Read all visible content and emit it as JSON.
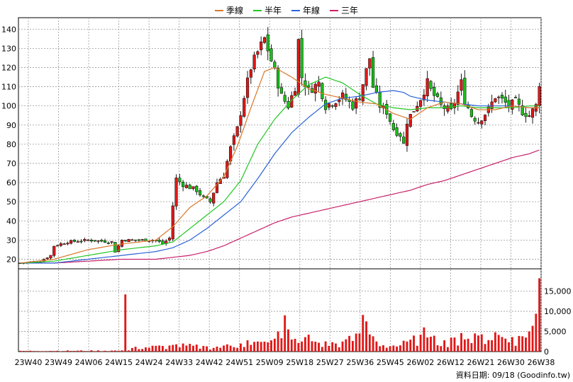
{
  "legend": [
    {
      "name": "季線",
      "color": "#d9772a"
    },
    {
      "name": "半年",
      "color": "#22c722"
    },
    {
      "name": "年線",
      "color": "#2a62d6"
    },
    {
      "name": "三年",
      "color": "#c8206a"
    }
  ],
  "footer": "資料日期: 09/18 (Goodinfo.tw)",
  "chart_data": {
    "type": "candlestick",
    "x_ticks": [
      "23W40",
      "23W49",
      "24W06",
      "24W15",
      "24W24",
      "24W33",
      "24W42",
      "24W51",
      "25W09",
      "25W18",
      "25W27",
      "25W36",
      "25W45",
      "26W02",
      "26W12",
      "26W21",
      "26W30",
      "26W38"
    ],
    "price_axis": {
      "ticks": [
        20,
        30,
        40,
        50,
        60,
        70,
        80,
        90,
        100,
        110,
        120,
        130,
        140
      ],
      "ylim": [
        15,
        146
      ]
    },
    "volume_axis": {
      "ticks": [
        "0",
        "5,000",
        "10,000",
        "15,000"
      ],
      "values": [
        0,
        5000,
        10000,
        15000
      ],
      "ylim": [
        0,
        19500
      ]
    },
    "grid": true,
    "n_weeks": 154,
    "close_anchors": [
      [
        0,
        18
      ],
      [
        6,
        19
      ],
      [
        9,
        22
      ],
      [
        10,
        27
      ],
      [
        14,
        29
      ],
      [
        20,
        30
      ],
      [
        27,
        29
      ],
      [
        28,
        24
      ],
      [
        30,
        30
      ],
      [
        40,
        30
      ],
      [
        42,
        28
      ],
      [
        44,
        31
      ],
      [
        45,
        48
      ],
      [
        46,
        62
      ],
      [
        48,
        59
      ],
      [
        52,
        56
      ],
      [
        54,
        52
      ],
      [
        56,
        50
      ],
      [
        58,
        60
      ],
      [
        60,
        64
      ],
      [
        62,
        78
      ],
      [
        64,
        88
      ],
      [
        66,
        105
      ],
      [
        68,
        120
      ],
      [
        70,
        128
      ],
      [
        72,
        135
      ],
      [
        75,
        118
      ],
      [
        77,
        105
      ],
      [
        79,
        100
      ],
      [
        81,
        110
      ],
      [
        82,
        134
      ],
      [
        83,
        115
      ],
      [
        85,
        108
      ],
      [
        88,
        112
      ],
      [
        90,
        100
      ],
      [
        92,
        102
      ],
      [
        95,
        105
      ],
      [
        98,
        100
      ],
      [
        100,
        105
      ],
      [
        103,
        125
      ],
      [
        104,
        110
      ],
      [
        106,
        100
      ],
      [
        108,
        97
      ],
      [
        110,
        88
      ],
      [
        112,
        85
      ],
      [
        113,
        80
      ],
      [
        114,
        92
      ],
      [
        116,
        98
      ],
      [
        118,
        104
      ],
      [
        120,
        112
      ],
      [
        121,
        108
      ],
      [
        124,
        100
      ],
      [
        127,
        97
      ],
      [
        130,
        112
      ],
      [
        131,
        103
      ],
      [
        133,
        95
      ],
      [
        135,
        92
      ],
      [
        138,
        98
      ],
      [
        140,
        105
      ],
      [
        142,
        103
      ],
      [
        144,
        100
      ],
      [
        146,
        102
      ],
      [
        148,
        97
      ],
      [
        150,
        95
      ],
      [
        152,
        100
      ],
      [
        153,
        112
      ]
    ],
    "ma_quarter": [
      [
        0,
        18
      ],
      [
        10,
        20
      ],
      [
        20,
        25
      ],
      [
        30,
        28
      ],
      [
        40,
        30
      ],
      [
        45,
        37
      ],
      [
        50,
        47
      ],
      [
        55,
        53
      ],
      [
        60,
        63
      ],
      [
        64,
        79
      ],
      [
        68,
        99
      ],
      [
        72,
        118
      ],
      [
        75,
        120
      ],
      [
        80,
        115
      ],
      [
        85,
        109
      ],
      [
        90,
        106
      ],
      [
        95,
        104
      ],
      [
        100,
        102
      ],
      [
        105,
        101
      ],
      [
        110,
        96
      ],
      [
        115,
        93
      ],
      [
        120,
        99
      ],
      [
        125,
        102
      ],
      [
        130,
        101
      ],
      [
        135,
        98
      ],
      [
        140,
        98
      ],
      [
        145,
        100
      ],
      [
        150,
        99
      ],
      [
        153,
        99
      ]
    ],
    "ma_half": [
      [
        0,
        18
      ],
      [
        10,
        19
      ],
      [
        20,
        22
      ],
      [
        30,
        25
      ],
      [
        40,
        27
      ],
      [
        45,
        29
      ],
      [
        50,
        36
      ],
      [
        55,
        43
      ],
      [
        60,
        50
      ],
      [
        65,
        61
      ],
      [
        70,
        80
      ],
      [
        75,
        93
      ],
      [
        80,
        103
      ],
      [
        85,
        111
      ],
      [
        90,
        115
      ],
      [
        95,
        112
      ],
      [
        100,
        106
      ],
      [
        105,
        101
      ],
      [
        110,
        99
      ],
      [
        115,
        98
      ],
      [
        120,
        99
      ],
      [
        125,
        99
      ],
      [
        130,
        100
      ],
      [
        135,
        99
      ],
      [
        140,
        99
      ],
      [
        145,
        99
      ],
      [
        150,
        100
      ],
      [
        153,
        100
      ]
    ],
    "ma_year": [
      [
        0,
        18
      ],
      [
        10,
        18
      ],
      [
        20,
        20
      ],
      [
        30,
        22
      ],
      [
        40,
        24
      ],
      [
        45,
        26
      ],
      [
        50,
        30
      ],
      [
        55,
        36
      ],
      [
        60,
        43
      ],
      [
        65,
        50
      ],
      [
        70,
        62
      ],
      [
        75,
        75
      ],
      [
        80,
        86
      ],
      [
        85,
        94
      ],
      [
        90,
        101
      ],
      [
        95,
        104
      ],
      [
        100,
        105
      ],
      [
        105,
        107
      ],
      [
        110,
        108
      ],
      [
        113,
        107
      ],
      [
        115,
        105
      ],
      [
        120,
        103
      ],
      [
        125,
        102
      ],
      [
        130,
        101
      ],
      [
        135,
        100
      ],
      [
        140,
        100
      ],
      [
        145,
        100
      ],
      [
        150,
        99
      ],
      [
        153,
        99
      ]
    ],
    "ma_3year": [
      [
        0,
        18
      ],
      [
        10,
        18
      ],
      [
        20,
        19
      ],
      [
        30,
        20
      ],
      [
        40,
        20
      ],
      [
        45,
        21
      ],
      [
        50,
        22
      ],
      [
        55,
        24
      ],
      [
        60,
        27
      ],
      [
        65,
        31
      ],
      [
        70,
        35
      ],
      [
        75,
        39
      ],
      [
        80,
        42
      ],
      [
        85,
        44
      ],
      [
        90,
        46
      ],
      [
        95,
        48
      ],
      [
        100,
        50
      ],
      [
        105,
        52
      ],
      [
        110,
        54
      ],
      [
        115,
        56
      ],
      [
        120,
        59
      ],
      [
        125,
        61
      ],
      [
        130,
        64
      ],
      [
        135,
        67
      ],
      [
        140,
        70
      ],
      [
        145,
        73
      ],
      [
        150,
        75
      ],
      [
        153,
        77
      ]
    ],
    "volume_anchors": [
      [
        0,
        200
      ],
      [
        30,
        300
      ],
      [
        31,
        14200
      ],
      [
        32,
        300
      ],
      [
        34,
        1200
      ],
      [
        44,
        1500
      ],
      [
        46,
        1800
      ],
      [
        55,
        1300
      ],
      [
        60,
        1500
      ],
      [
        65,
        2000
      ],
      [
        67,
        2800
      ],
      [
        70,
        2500
      ],
      [
        73,
        2300
      ],
      [
        75,
        3200
      ],
      [
        78,
        9000
      ],
      [
        79,
        5500
      ],
      [
        80,
        3000
      ],
      [
        83,
        2500
      ],
      [
        85,
        4200
      ],
      [
        88,
        2200
      ],
      [
        95,
        2500
      ],
      [
        100,
        4500
      ],
      [
        101,
        9100
      ],
      [
        102,
        7500
      ],
      [
        105,
        2500
      ],
      [
        110,
        1500
      ],
      [
        114,
        2500
      ],
      [
        118,
        4200
      ],
      [
        119,
        6000
      ],
      [
        120,
        3500
      ],
      [
        125,
        2800
      ],
      [
        128,
        3500
      ],
      [
        130,
        4600
      ],
      [
        132,
        3200
      ],
      [
        135,
        4000
      ],
      [
        140,
        4800
      ],
      [
        145,
        3600
      ],
      [
        148,
        3800
      ],
      [
        150,
        5000
      ],
      [
        151,
        6400
      ],
      [
        152,
        9400
      ],
      [
        153,
        18200
      ]
    ]
  }
}
